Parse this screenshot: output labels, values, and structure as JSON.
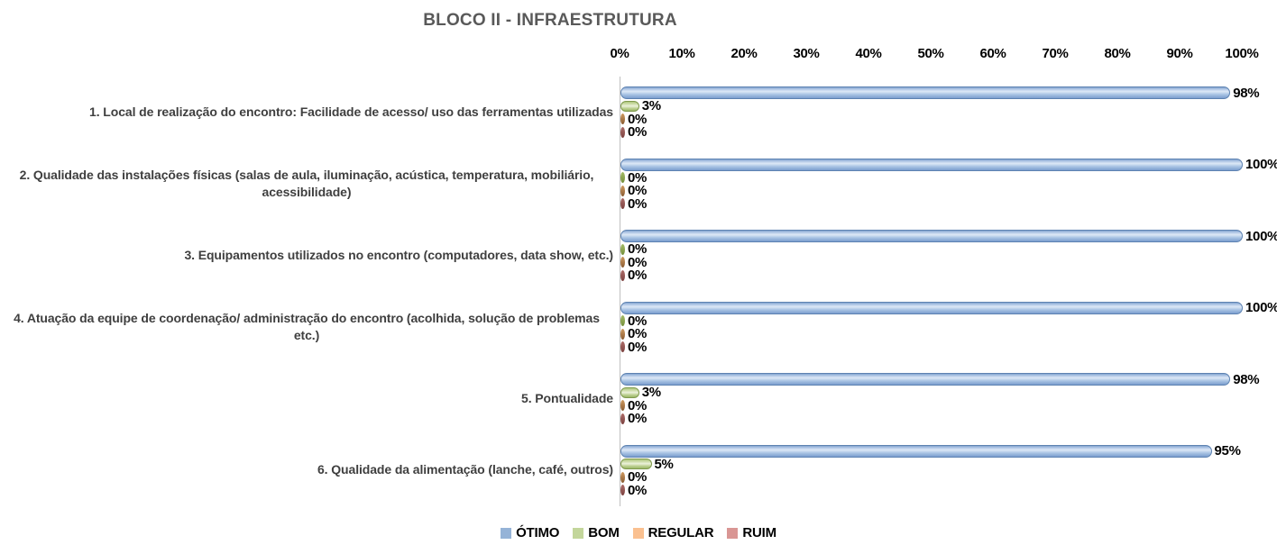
{
  "chart_data": {
    "type": "bar",
    "orientation": "horizontal",
    "title": "BLOCO II - INFRAESTRUTURA",
    "xlabel": "",
    "ylabel": "",
    "xlim": [
      0,
      100
    ],
    "x_tick_labels": [
      "0%",
      "10%",
      "20%",
      "30%",
      "40%",
      "50%",
      "60%",
      "70%",
      "80%",
      "90%",
      "100%"
    ],
    "grid": false,
    "value_labels": true,
    "value_suffix": "%",
    "bar_style": "3d-cylinder",
    "legend_position": "bottom",
    "categories": [
      "1. Local de realização do encontro: Facilidade de acesso/ uso das ferramentas utilizadas",
      "2. Qualidade das instalações físicas (salas de aula, iluminação, acústica, temperatura, mobiliário, acessibilidade)",
      "3. Equipamentos utilizados no encontro (computadores, data show, etc.)",
      "4. Atuação da equipe de coordenação/ administração do encontro (acolhida, solução de problemas etc.)",
      "5. Pontualidade",
      "6. Qualidade da alimentação (lanche, café, outros)"
    ],
    "series": [
      {
        "name": "ÓTIMO",
        "color": "#95B3D7",
        "values": [
          98,
          100,
          100,
          100,
          98,
          95
        ]
      },
      {
        "name": "BOM",
        "color": "#C3D69B",
        "values": [
          3,
          0,
          0,
          0,
          3,
          5
        ]
      },
      {
        "name": "REGULAR",
        "color": "#FAC090",
        "values": [
          0,
          0,
          0,
          0,
          0,
          0
        ]
      },
      {
        "name": "RUIM",
        "color": "#D99694",
        "values": [
          0,
          0,
          0,
          0,
          0,
          0
        ]
      }
    ]
  },
  "colors": {
    "background": "#FFFFFF",
    "title_text": "#595959",
    "category_label_text": "#3F3F3F",
    "axis_line": "#BFBFBF",
    "label_text": "#000000"
  }
}
